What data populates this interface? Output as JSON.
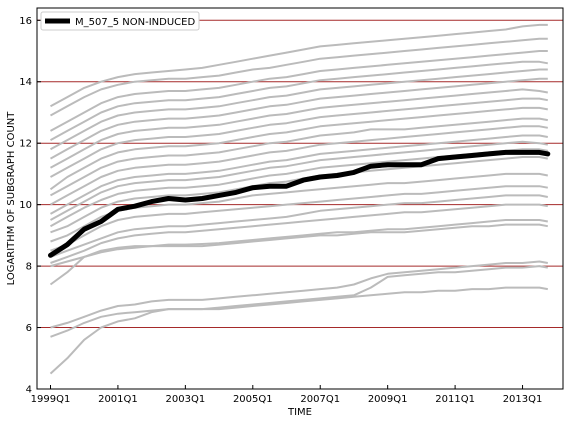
{
  "chart_data": {
    "type": "line",
    "xlabel": "TIME",
    "ylabel": "LOGARITHM OF SUBGRAPH COUNT",
    "xlim": [
      1998.6,
      2014.2
    ],
    "ylim": [
      4,
      16.4
    ],
    "x_ticks": [
      1999,
      2001,
      2003,
      2005,
      2007,
      2009,
      2011,
      2013
    ],
    "x_tick_labels": [
      "1999Q1",
      "2001Q1",
      "2003Q1",
      "2005Q1",
      "2007Q1",
      "2009Q1",
      "2011Q1",
      "2013Q1"
    ],
    "y_ticks": [
      4,
      6,
      8,
      10,
      12,
      14,
      16
    ],
    "y_tick_labels": [
      "4",
      "6",
      "8",
      "10",
      "12",
      "14",
      "16"
    ],
    "grid": "horizontal",
    "legend": {
      "position": "top-left",
      "entries": [
        "M_507_5 NON-INDUCED"
      ]
    },
    "colors": {
      "highlight": "#000000",
      "background_series": "#bbbbbb",
      "grid": "#a52a2a"
    },
    "highlight_series": {
      "name": "M_507_5 NON-INDUCED",
      "x": [
        1999.0,
        1999.5,
        2000.0,
        2000.5,
        2001.0,
        2001.5,
        2002.0,
        2002.5,
        2003.0,
        2003.5,
        2004.0,
        2004.5,
        2005.0,
        2005.5,
        2006.0,
        2006.5,
        2007.0,
        2007.5,
        2008.0,
        2008.5,
        2009.0,
        2009.5,
        2010.0,
        2010.5,
        2011.0,
        2011.5,
        2012.0,
        2012.5,
        2013.0,
        2013.5,
        2013.75
      ],
      "y": [
        8.35,
        8.7,
        9.2,
        9.45,
        9.85,
        9.95,
        10.1,
        10.2,
        10.15,
        10.2,
        10.3,
        10.4,
        10.55,
        10.6,
        10.6,
        10.8,
        10.9,
        10.95,
        11.05,
        11.25,
        11.3,
        11.3,
        11.3,
        11.5,
        11.55,
        11.6,
        11.65,
        11.7,
        11.7,
        11.7,
        11.65
      ]
    },
    "background_series_x": [
      1999.0,
      1999.5,
      2000.0,
      2000.5,
      2001.0,
      2001.5,
      2002.0,
      2002.5,
      2003.0,
      2003.5,
      2004.0,
      2004.5,
      2005.0,
      2005.5,
      2006.0,
      2006.5,
      2007.0,
      2007.5,
      2008.0,
      2008.5,
      2009.0,
      2009.5,
      2010.0,
      2010.5,
      2011.0,
      2011.5,
      2012.0,
      2012.5,
      2013.0,
      2013.5,
      2013.75
    ],
    "background_series": [
      [
        13.2,
        13.5,
        13.8,
        14.0,
        14.15,
        14.25,
        14.3,
        14.35,
        14.4,
        14.45,
        14.55,
        14.65,
        14.75,
        14.85,
        14.95,
        15.05,
        15.15,
        15.2,
        15.25,
        15.3,
        15.35,
        15.4,
        15.45,
        15.5,
        15.55,
        15.6,
        15.65,
        15.7,
        15.8,
        15.85,
        15.85
      ],
      [
        12.9,
        13.2,
        13.5,
        13.75,
        13.9,
        14.0,
        14.05,
        14.1,
        14.1,
        14.15,
        14.2,
        14.3,
        14.4,
        14.45,
        14.55,
        14.65,
        14.75,
        14.8,
        14.85,
        14.9,
        14.95,
        15.0,
        15.05,
        15.1,
        15.15,
        15.2,
        15.25,
        15.3,
        15.35,
        15.4,
        15.4
      ],
      [
        12.4,
        12.7,
        13.0,
        13.3,
        13.5,
        13.6,
        13.65,
        13.7,
        13.7,
        13.75,
        13.8,
        13.9,
        14.0,
        14.1,
        14.15,
        14.25,
        14.35,
        14.4,
        14.45,
        14.5,
        14.55,
        14.6,
        14.65,
        14.7,
        14.75,
        14.8,
        14.85,
        14.9,
        14.95,
        15.0,
        15.0
      ],
      [
        12.1,
        12.4,
        12.7,
        13.0,
        13.2,
        13.3,
        13.35,
        13.4,
        13.4,
        13.45,
        13.5,
        13.6,
        13.7,
        13.8,
        13.85,
        13.95,
        14.05,
        14.1,
        14.15,
        14.2,
        14.25,
        14.3,
        14.35,
        14.4,
        14.45,
        14.5,
        14.55,
        14.6,
        14.65,
        14.65,
        14.6
      ],
      [
        11.8,
        12.1,
        12.4,
        12.7,
        12.9,
        13.0,
        13.05,
        13.1,
        13.1,
        13.15,
        13.2,
        13.3,
        13.4,
        13.5,
        13.55,
        13.65,
        13.75,
        13.8,
        13.85,
        13.9,
        13.95,
        14.0,
        14.05,
        14.1,
        14.15,
        14.2,
        14.25,
        14.3,
        14.35,
        14.4,
        14.4
      ],
      [
        11.5,
        11.8,
        12.1,
        12.4,
        12.6,
        12.7,
        12.75,
        12.8,
        12.8,
        12.85,
        12.9,
        13.0,
        13.1,
        13.2,
        13.25,
        13.35,
        13.45,
        13.5,
        13.55,
        13.6,
        13.65,
        13.7,
        13.75,
        13.8,
        13.85,
        13.9,
        13.95,
        14.0,
        14.05,
        14.1,
        14.1
      ],
      [
        11.2,
        11.5,
        11.8,
        12.1,
        12.3,
        12.4,
        12.45,
        12.5,
        12.5,
        12.55,
        12.6,
        12.7,
        12.8,
        12.9,
        12.95,
        13.05,
        13.15,
        13.2,
        13.25,
        13.3,
        13.35,
        13.4,
        13.45,
        13.5,
        13.55,
        13.6,
        13.65,
        13.7,
        13.75,
        13.7,
        13.65
      ],
      [
        10.9,
        11.2,
        11.5,
        11.8,
        12.0,
        12.1,
        12.15,
        12.2,
        12.2,
        12.25,
        12.3,
        12.4,
        12.5,
        12.6,
        12.65,
        12.75,
        12.85,
        12.9,
        12.95,
        13.0,
        13.05,
        13.1,
        13.15,
        13.2,
        13.25,
        13.3,
        13.35,
        13.4,
        13.45,
        13.45,
        13.4
      ],
      [
        10.5,
        10.9,
        11.2,
        11.5,
        11.7,
        11.8,
        11.85,
        11.9,
        11.9,
        11.95,
        12.0,
        12.1,
        12.2,
        12.3,
        12.35,
        12.45,
        12.55,
        12.6,
        12.65,
        12.7,
        12.75,
        12.8,
        12.85,
        12.9,
        12.95,
        13.0,
        13.05,
        13.1,
        13.15,
        13.15,
        13.1
      ],
      [
        10.3,
        10.6,
        10.9,
        11.2,
        11.4,
        11.5,
        11.55,
        11.6,
        11.6,
        11.65,
        11.7,
        11.8,
        11.9,
        12.0,
        12.05,
        12.15,
        12.25,
        12.3,
        12.35,
        12.45,
        12.45,
        12.45,
        12.5,
        12.55,
        12.6,
        12.65,
        12.7,
        12.75,
        12.8,
        12.8,
        12.75
      ],
      [
        10.0,
        10.3,
        10.6,
        10.9,
        11.1,
        11.2,
        11.25,
        11.3,
        11.3,
        11.35,
        11.4,
        11.5,
        11.6,
        11.7,
        11.75,
        11.85,
        11.95,
        12.0,
        12.05,
        12.1,
        12.15,
        12.2,
        12.25,
        12.3,
        12.35,
        12.4,
        12.45,
        12.5,
        12.55,
        12.55,
        12.5
      ],
      [
        9.7,
        10.0,
        10.3,
        10.6,
        10.8,
        10.9,
        10.95,
        11.0,
        11.0,
        11.05,
        11.1,
        11.2,
        11.3,
        11.4,
        11.45,
        11.55,
        11.65,
        11.7,
        11.75,
        11.8,
        11.85,
        11.9,
        11.95,
        12.0,
        12.05,
        12.1,
        12.15,
        12.2,
        12.25,
        12.25,
        12.2
      ],
      [
        9.5,
        9.8,
        10.1,
        10.4,
        10.6,
        10.7,
        10.75,
        10.8,
        10.8,
        10.85,
        10.9,
        11.0,
        11.1,
        11.2,
        11.25,
        11.35,
        11.45,
        11.5,
        11.55,
        11.6,
        11.65,
        11.7,
        11.75,
        11.8,
        11.85,
        11.9,
        11.95,
        12.0,
        12.05,
        12.0,
        11.95
      ],
      [
        9.3,
        9.6,
        9.9,
        10.15,
        10.35,
        10.45,
        10.5,
        10.55,
        10.55,
        10.6,
        10.65,
        10.75,
        10.85,
        10.95,
        11.0,
        11.1,
        11.2,
        11.25,
        11.3,
        11.35,
        11.4,
        11.45,
        11.5,
        11.55,
        11.6,
        11.65,
        11.7,
        11.75,
        11.8,
        11.8,
        11.75
      ],
      [
        9.1,
        9.3,
        9.6,
        9.9,
        10.1,
        10.2,
        10.25,
        10.3,
        10.3,
        10.35,
        10.4,
        10.5,
        10.6,
        10.7,
        10.75,
        10.85,
        10.95,
        11.0,
        11.05,
        11.1,
        11.15,
        11.2,
        11.25,
        11.3,
        11.35,
        11.4,
        11.45,
        11.5,
        11.55,
        11.55,
        11.5
      ],
      [
        8.8,
        9.0,
        9.3,
        9.6,
        9.8,
        9.9,
        9.95,
        10.0,
        10.0,
        10.05,
        10.1,
        10.2,
        10.3,
        10.35,
        10.4,
        10.45,
        10.5,
        10.55,
        10.6,
        10.65,
        10.7,
        10.7,
        10.75,
        10.8,
        10.85,
        10.9,
        10.95,
        11.0,
        11.0,
        11.0,
        10.95
      ],
      [
        8.5,
        8.7,
        9.0,
        9.3,
        9.5,
        9.6,
        9.65,
        9.7,
        9.7,
        9.75,
        9.8,
        9.85,
        9.9,
        9.95,
        10.0,
        10.05,
        10.1,
        10.15,
        10.2,
        10.25,
        10.3,
        10.35,
        10.35,
        10.4,
        10.45,
        10.5,
        10.55,
        10.6,
        10.6,
        10.6,
        10.55
      ],
      [
        8.3,
        8.5,
        8.7,
        8.9,
        9.1,
        9.2,
        9.25,
        9.3,
        9.3,
        9.35,
        9.4,
        9.45,
        9.5,
        9.55,
        9.6,
        9.7,
        9.8,
        9.85,
        9.9,
        9.95,
        10.0,
        10.05,
        10.05,
        10.1,
        10.15,
        10.2,
        10.25,
        10.3,
        10.3,
        10.3,
        10.25
      ],
      [
        8.1,
        8.3,
        8.5,
        8.75,
        8.9,
        9.0,
        9.05,
        9.1,
        9.1,
        9.15,
        9.2,
        9.25,
        9.3,
        9.35,
        9.4,
        9.45,
        9.5,
        9.55,
        9.6,
        9.65,
        9.7,
        9.75,
        9.75,
        9.8,
        9.85,
        9.9,
        9.95,
        10.0,
        10.0,
        10.0,
        9.95
      ],
      [
        8.0,
        8.15,
        8.3,
        8.45,
        8.55,
        8.6,
        8.65,
        8.7,
        8.7,
        8.72,
        8.75,
        8.8,
        8.85,
        8.9,
        8.95,
        9.0,
        9.05,
        9.1,
        9.1,
        9.15,
        9.2,
        9.2,
        9.25,
        9.3,
        9.35,
        9.4,
        9.45,
        9.5,
        9.5,
        9.5,
        9.45
      ],
      [
        7.4,
        7.8,
        8.3,
        8.5,
        8.6,
        8.65,
        8.65,
        8.65,
        8.65,
        8.65,
        8.7,
        8.75,
        8.8,
        8.85,
        8.9,
        8.95,
        9.0,
        9.0,
        9.05,
        9.1,
        9.1,
        9.1,
        9.15,
        9.2,
        9.25,
        9.3,
        9.3,
        9.35,
        9.35,
        9.35,
        9.3
      ],
      [
        6.0,
        6.15,
        6.35,
        6.55,
        6.7,
        6.75,
        6.85,
        6.9,
        6.9,
        6.9,
        6.95,
        7.0,
        7.05,
        7.1,
        7.15,
        7.2,
        7.25,
        7.3,
        7.4,
        7.6,
        7.75,
        7.8,
        7.85,
        7.9,
        7.95,
        8.0,
        8.05,
        8.1,
        8.1,
        8.15,
        8.1
      ],
      [
        5.7,
        5.9,
        6.15,
        6.35,
        6.45,
        6.5,
        6.55,
        6.6,
        6.6,
        6.6,
        6.65,
        6.7,
        6.75,
        6.8,
        6.85,
        6.9,
        6.95,
        7.0,
        7.05,
        7.3,
        7.65,
        7.7,
        7.75,
        7.8,
        7.8,
        7.85,
        7.9,
        7.95,
        7.95,
        8.0,
        7.95
      ],
      [
        4.5,
        5.0,
        5.6,
        6.0,
        6.2,
        6.3,
        6.5,
        6.6,
        6.6,
        6.6,
        6.6,
        6.65,
        6.7,
        6.75,
        6.8,
        6.85,
        6.9,
        6.95,
        7.0,
        7.05,
        7.1,
        7.15,
        7.15,
        7.2,
        7.2,
        7.25,
        7.25,
        7.3,
        7.3,
        7.3,
        7.25
      ]
    ]
  }
}
